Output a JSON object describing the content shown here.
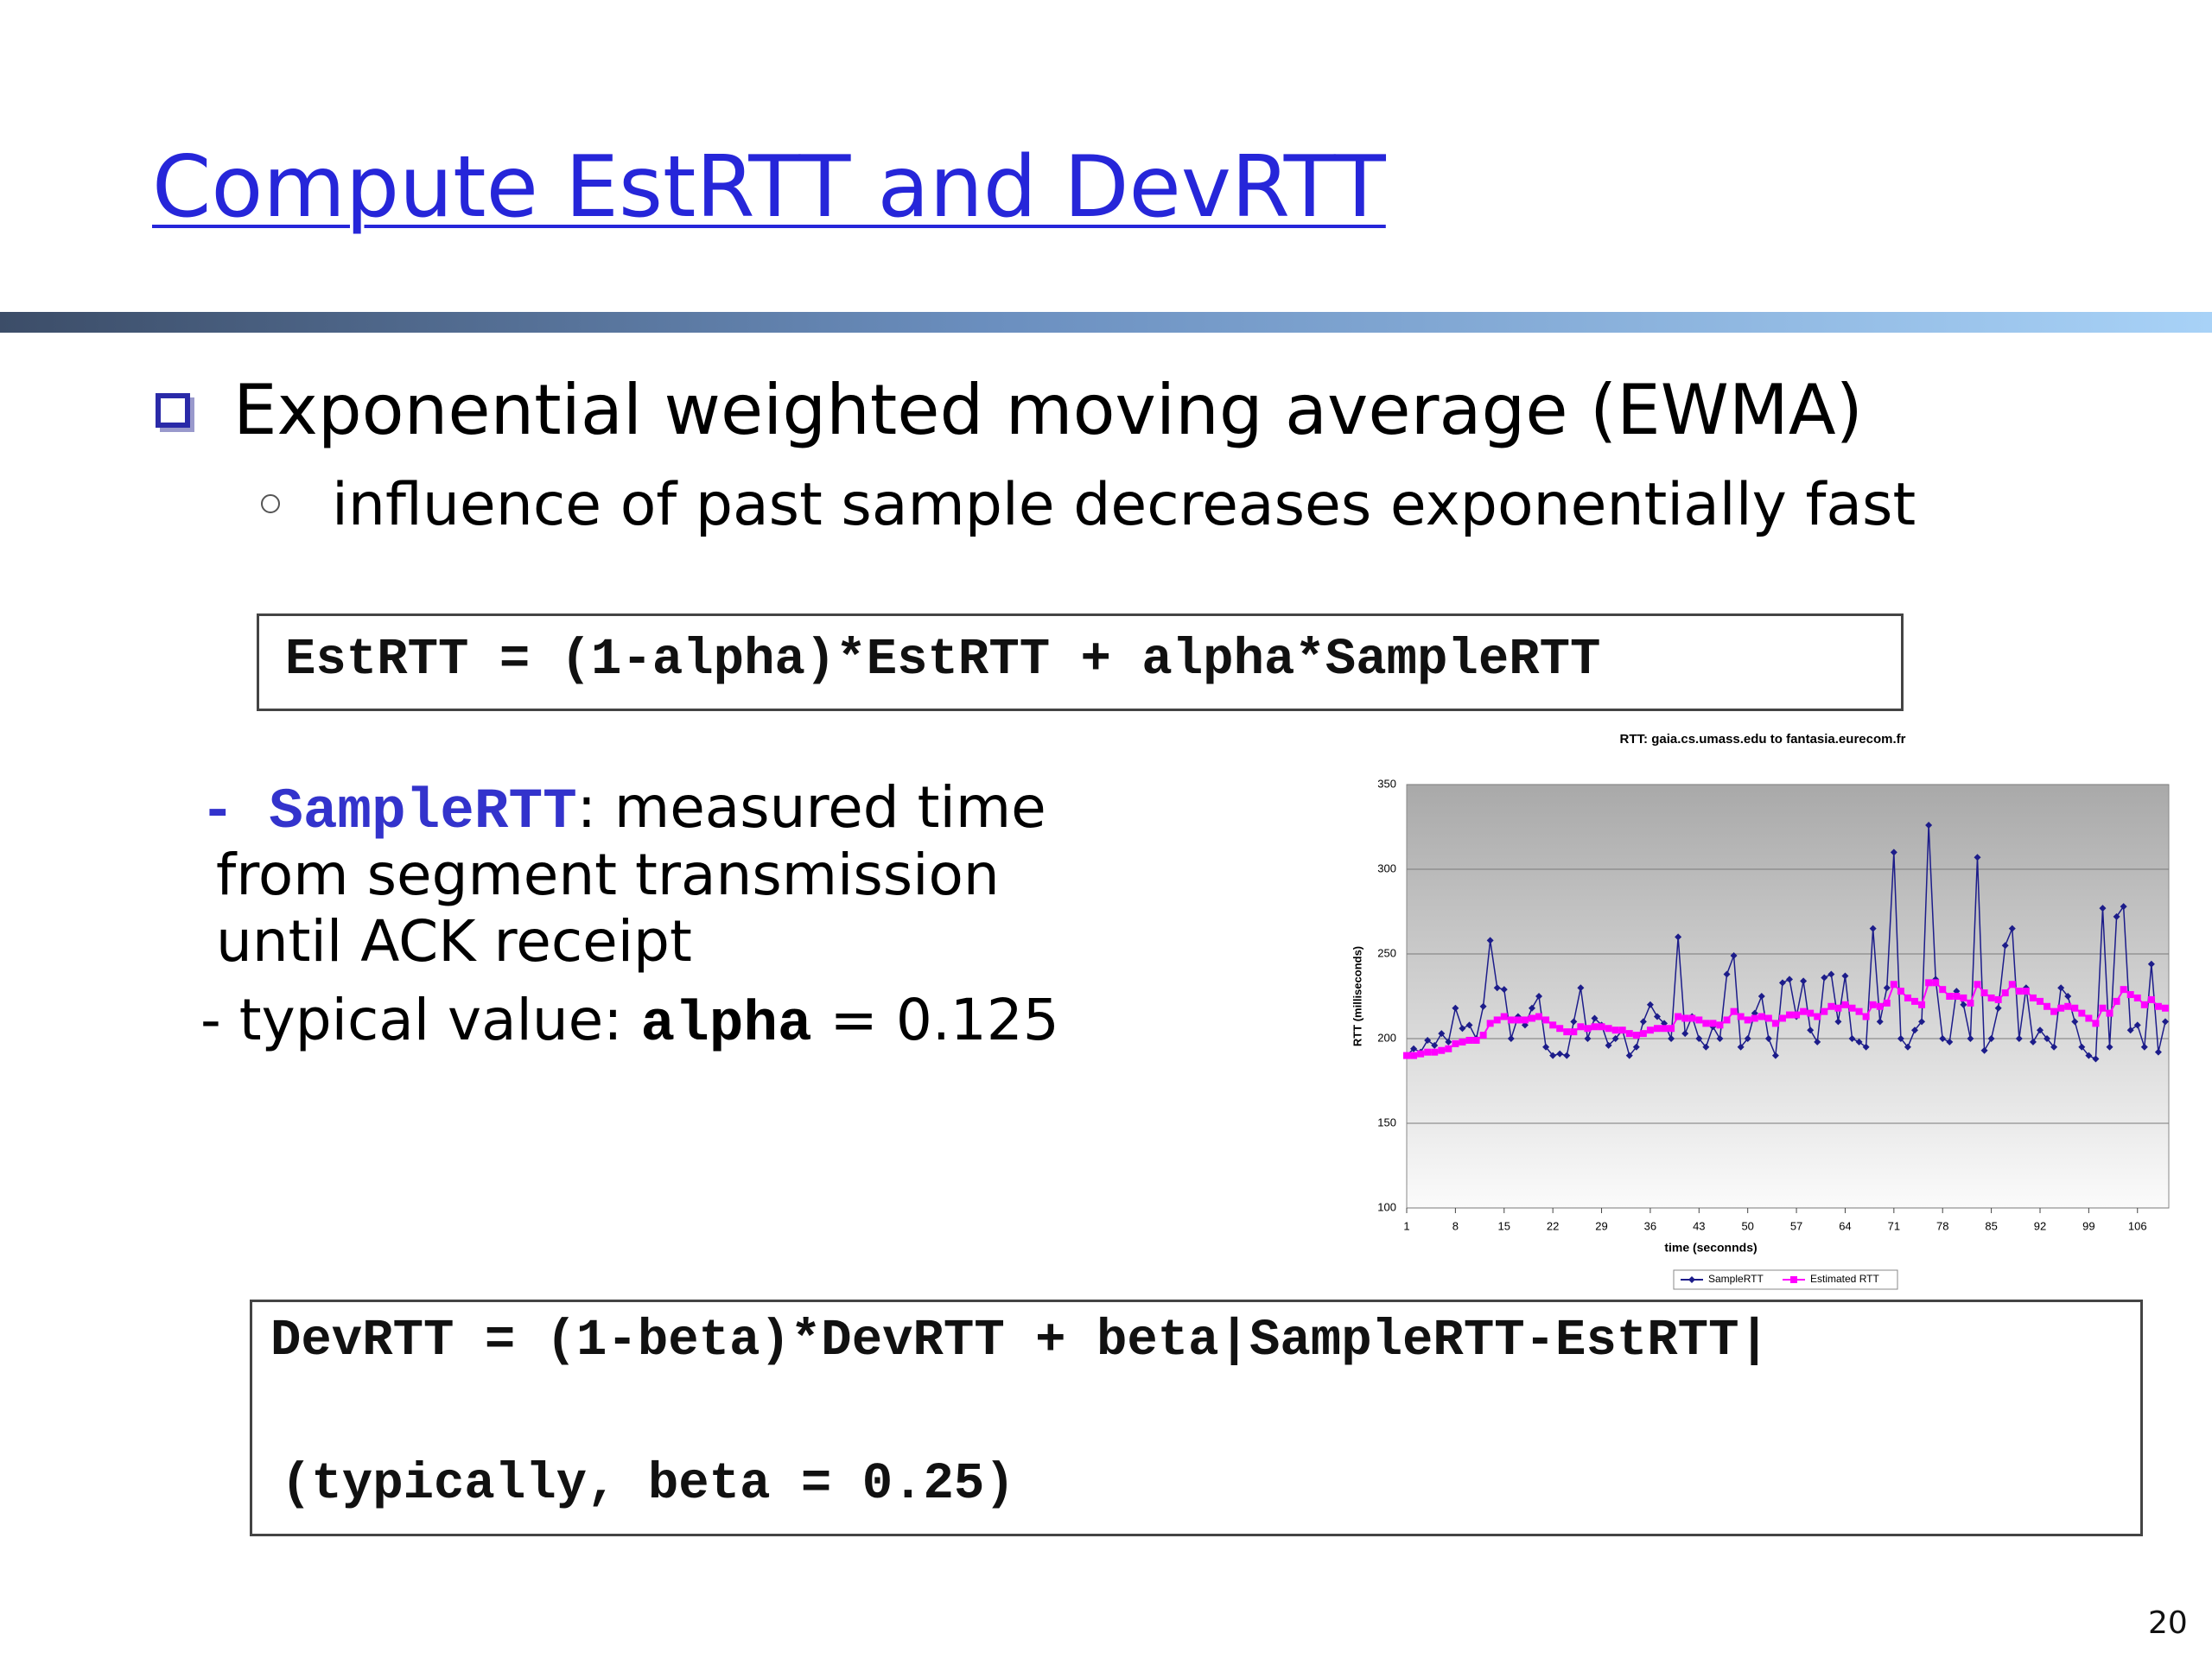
{
  "title": "Compute EstRTT and DevRTT",
  "bullets": [
    {
      "text": "Exponential weighted moving average (EWMA)",
      "sub": [
        "influence of past sample decreases exponentially fast"
      ]
    }
  ],
  "formula_1": "EstRTT = (1-alpha)*EstRTT + alpha*SampleRTT",
  "notes": {
    "sample_dash": "- ",
    "sample_term": "SampleRTT",
    "sample_text": ": measured time",
    "sample_lines": [
      "from segment transmission",
      "until ACK receipt"
    ],
    "typical_text": "- typical value: ",
    "typical_term": "alpha",
    "typical_value": " = 0.125"
  },
  "chart_data": {
    "type": "line",
    "title": "RTT: gaia.cs.umass.edu to fantasia.eurecom.fr",
    "x_label": "time (seconnds)",
    "y_label": "RTT (milliseconds)",
    "x": [
      1,
      2,
      3,
      4,
      5,
      6,
      7,
      8,
      9,
      10,
      11,
      12,
      13,
      14,
      15,
      16,
      17,
      18,
      19,
      20,
      21,
      22,
      23,
      24,
      25,
      26,
      27,
      28,
      29,
      30,
      31,
      32,
      33,
      34,
      35,
      36,
      37,
      38,
      39,
      40,
      41,
      42,
      43,
      44,
      45,
      46,
      47,
      48,
      49,
      50,
      51,
      52,
      53,
      54,
      55,
      56,
      57,
      58,
      59,
      60,
      61,
      62,
      63,
      64,
      65,
      66,
      67,
      68,
      69,
      70,
      71,
      72,
      73,
      74,
      75,
      76,
      77,
      78,
      79,
      80,
      81,
      82,
      83,
      84,
      85,
      86,
      87,
      88,
      89,
      90,
      91,
      92,
      93,
      94,
      95,
      96,
      97,
      98,
      99,
      100,
      101,
      102,
      103,
      104,
      105,
      106,
      107,
      108,
      109,
      110
    ],
    "series": [
      {
        "name": "SampleRTT",
        "color": "#1c1c8a",
        "values": [
          190,
          194,
          192,
          199,
          196,
          203,
          198,
          218,
          206,
          208,
          200,
          219,
          258,
          230,
          229,
          200,
          213,
          208,
          218,
          225,
          195,
          190,
          191,
          190,
          210,
          230,
          200,
          212,
          208,
          196,
          200,
          205,
          190,
          195,
          210,
          220,
          213,
          209,
          200,
          260,
          203,
          213,
          200,
          195,
          207,
          200,
          238,
          249,
          195,
          200,
          215,
          225,
          200,
          190,
          233,
          235,
          213,
          234,
          205,
          198,
          236,
          238,
          210,
          237,
          200,
          198,
          195,
          265,
          210,
          230,
          310,
          200,
          195,
          205,
          210,
          326,
          235,
          200,
          198,
          228,
          220,
          200,
          307,
          193,
          200,
          218,
          255,
          265,
          200,
          230,
          198,
          205,
          200,
          195,
          230,
          225,
          210,
          195,
          190,
          188,
          277,
          195,
          272,
          278,
          205,
          208,
          195,
          244,
          192,
          210
        ]
      },
      {
        "name": "Estimated RTT",
        "color": "#ff00ff",
        "values": [
          190,
          190,
          191,
          192,
          192,
          193,
          194,
          197,
          198,
          199,
          199,
          202,
          209,
          211,
          213,
          211,
          211,
          211,
          212,
          213,
          211,
          208,
          206,
          204,
          204,
          207,
          206,
          207,
          207,
          206,
          205,
          205,
          203,
          202,
          203,
          205,
          206,
          206,
          206,
          213,
          212,
          212,
          211,
          209,
          209,
          208,
          211,
          216,
          213,
          211,
          212,
          213,
          212,
          209,
          212,
          214,
          214,
          216,
          215,
          213,
          216,
          219,
          218,
          220,
          218,
          216,
          213,
          220,
          219,
          221,
          232,
          228,
          224,
          222,
          220,
          233,
          233,
          229,
          225,
          225,
          224,
          221,
          232,
          227,
          224,
          223,
          227,
          232,
          228,
          228,
          224,
          222,
          219,
          216,
          218,
          219,
          218,
          215,
          212,
          209,
          218,
          215,
          222,
          229,
          226,
          224,
          220,
          223,
          219,
          218
        ]
      }
    ],
    "xlim": [
      1,
      110.5
    ],
    "xticks": [
      1,
      8,
      15,
      22,
      29,
      36,
      43,
      50,
      57,
      64,
      71,
      78,
      85,
      92,
      99,
      106
    ],
    "ylim": [
      100,
      350
    ],
    "yticks": [
      100,
      150,
      200,
      250,
      300,
      350
    ],
    "grid": true,
    "legend": "bottom"
  },
  "formula_2": [
    "DevRTT = (1-beta)*DevRTT + beta|SampleRTT-EstRTT|",
    "(typically, beta = 0.25)"
  ],
  "page_number": "20"
}
